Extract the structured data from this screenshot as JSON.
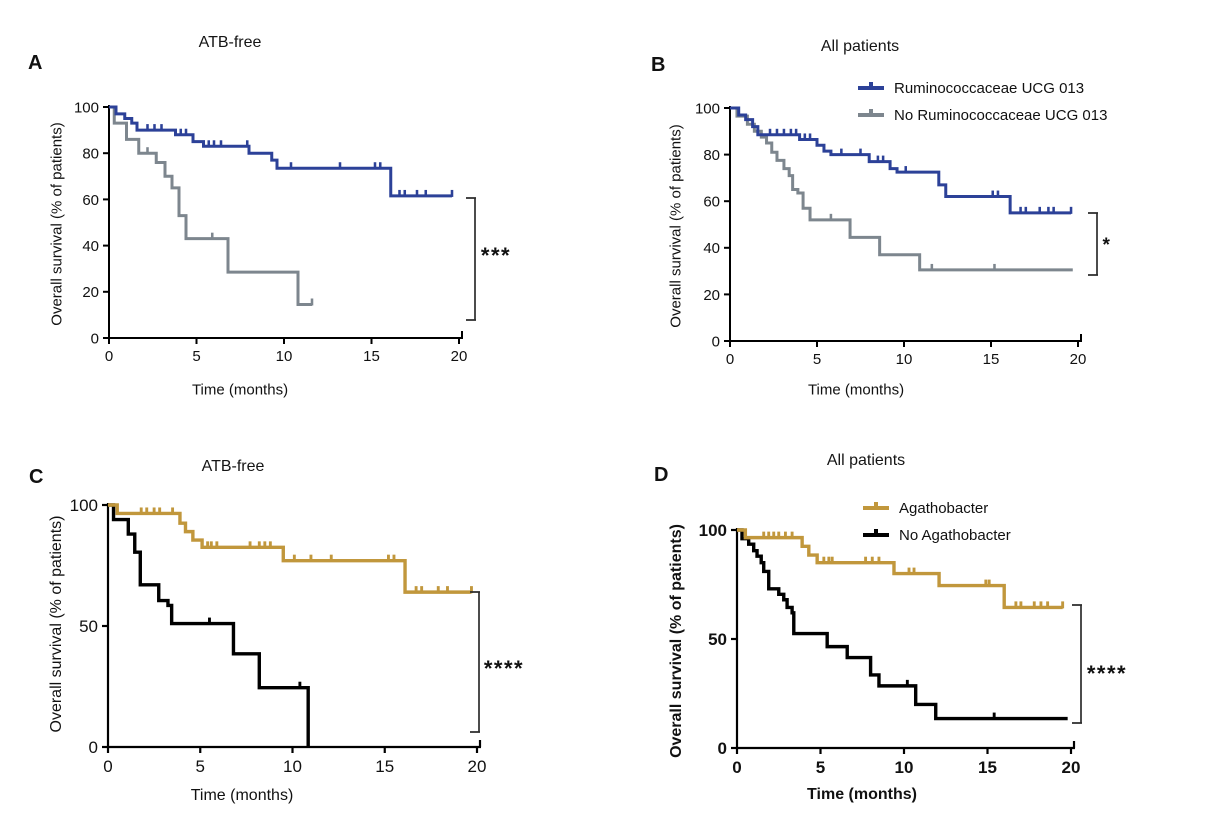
{
  "figure": {
    "background": "#ffffff",
    "description": "Kaplan-Meier overall survival curves, four panels"
  },
  "colors": {
    "blue": "#2c4198",
    "gray": "#7d868e",
    "gold": "#c1973c",
    "black": "#000000",
    "bracket": "#2d2d2d"
  },
  "chart_data": [
    {
      "type": "line",
      "subtype": "kaplan_meier_step",
      "panel_letter": "A",
      "title": "ATB-free",
      "xlabel": "Time (months)",
      "ylabel": "Overall survival (% of patients)",
      "xlim": [
        0,
        20
      ],
      "ylim": [
        0,
        100
      ],
      "x_ticks": [
        0,
        5,
        10,
        15,
        20
      ],
      "y_ticks": [
        0,
        20,
        40,
        60,
        80,
        100
      ],
      "grid": false,
      "legend_position": "none",
      "significance": {
        "label": "***"
      },
      "series": [
        {
          "name": "Ruminococcaceae UCG 013",
          "color": "#2c4198",
          "steps": [
            [
              0,
              100
            ],
            [
              0.4,
              97
            ],
            [
              0.9,
              95
            ],
            [
              1.3,
              93
            ],
            [
              1.6,
              90
            ],
            [
              3.8,
              88
            ],
            [
              4.8,
              85
            ],
            [
              5.4,
              83
            ],
            [
              8.0,
              80
            ],
            [
              9.3,
              77
            ],
            [
              9.6,
              73.5
            ],
            [
              16.1,
              61.5
            ]
          ],
          "end_time": 19.6,
          "end_tick": true,
          "censor_marks": [
            [
              2.2,
              90
            ],
            [
              2.6,
              90
            ],
            [
              3.0,
              90
            ],
            [
              4.1,
              88
            ],
            [
              4.4,
              88
            ],
            [
              5.7,
              83
            ],
            [
              6.0,
              83
            ],
            [
              6.4,
              83
            ],
            [
              7.9,
              83
            ],
            [
              10.4,
              73.5
            ],
            [
              13.2,
              73.5
            ],
            [
              15.2,
              73.5
            ],
            [
              15.5,
              73.5
            ],
            [
              16.6,
              61.5
            ],
            [
              16.9,
              61.5
            ],
            [
              17.6,
              61.5
            ],
            [
              18.1,
              61.5
            ]
          ]
        },
        {
          "name": "No Ruminococcaceae UCG 013",
          "color": "#7d868e",
          "steps": [
            [
              0,
              100
            ],
            [
              0.3,
              93
            ],
            [
              1.0,
              86
            ],
            [
              1.7,
              80
            ],
            [
              2.7,
              76
            ],
            [
              3.2,
              70
            ],
            [
              3.6,
              65
            ],
            [
              4.0,
              53
            ],
            [
              4.4,
              43
            ],
            [
              6.8,
              28.5
            ],
            [
              10.8,
              14.5
            ]
          ],
          "end_time": 11.6,
          "end_tick": true,
          "censor_marks": [
            [
              2.2,
              80
            ],
            [
              5.9,
              43
            ]
          ]
        }
      ]
    },
    {
      "type": "line",
      "subtype": "kaplan_meier_step",
      "panel_letter": "B",
      "title": "All patients",
      "xlabel": "Time (months)",
      "ylabel": "Overall survival (% of patients)",
      "xlim": [
        0,
        20
      ],
      "ylim": [
        0,
        100
      ],
      "x_ticks": [
        0,
        5,
        10,
        15,
        20
      ],
      "y_ticks": [
        0,
        20,
        40,
        60,
        80,
        100
      ],
      "grid": false,
      "legend_position": "top",
      "significance": {
        "label": "*"
      },
      "series": [
        {
          "name": "Ruminococcaceae UCG 013",
          "color": "#2c4198",
          "steps": [
            [
              0,
              100
            ],
            [
              0.5,
              97
            ],
            [
              0.9,
              95
            ],
            [
              1.3,
              92
            ],
            [
              1.6,
              88.5
            ],
            [
              4.0,
              86.5
            ],
            [
              5.0,
              84
            ],
            [
              5.4,
              81.5
            ],
            [
              5.8,
              80
            ],
            [
              8.0,
              77
            ],
            [
              9.2,
              74
            ],
            [
              9.6,
              72.5
            ],
            [
              12.0,
              67
            ],
            [
              12.4,
              62
            ],
            [
              16.1,
              55
            ]
          ],
          "end_time": 19.6,
          "end_tick": true,
          "censor_marks": [
            [
              2.3,
              88.5
            ],
            [
              2.7,
              88.5
            ],
            [
              3.1,
              88.5
            ],
            [
              3.5,
              88.5
            ],
            [
              3.8,
              88.5
            ],
            [
              4.3,
              86.5
            ],
            [
              4.6,
              86.5
            ],
            [
              6.4,
              80
            ],
            [
              7.5,
              80
            ],
            [
              8.5,
              77
            ],
            [
              8.8,
              77
            ],
            [
              10.1,
              72.5
            ],
            [
              15.1,
              62
            ],
            [
              15.4,
              62
            ],
            [
              16.7,
              55
            ],
            [
              17.0,
              55
            ],
            [
              17.8,
              55
            ],
            [
              18.3,
              55
            ],
            [
              18.6,
              55
            ]
          ]
        },
        {
          "name": "No Ruminococcaceae UCG 013",
          "color": "#7d868e",
          "steps": [
            [
              0,
              100
            ],
            [
              0.4,
              96.5
            ],
            [
              1.0,
              93
            ],
            [
              1.4,
              90
            ],
            [
              1.8,
              87.5
            ],
            [
              2.1,
              85
            ],
            [
              2.4,
              81
            ],
            [
              2.7,
              77.5
            ],
            [
              3.1,
              74
            ],
            [
              3.4,
              71
            ],
            [
              3.6,
              65
            ],
            [
              3.9,
              63.5
            ],
            [
              4.2,
              57
            ],
            [
              4.6,
              52
            ],
            [
              6.9,
              44.5
            ],
            [
              8.6,
              37
            ],
            [
              10.9,
              30.5
            ]
          ],
          "end_time": 19.7,
          "end_tick": false,
          "censor_marks": [
            [
              5.8,
              52
            ],
            [
              11.6,
              30.5
            ],
            [
              15.2,
              30.5
            ]
          ]
        }
      ]
    },
    {
      "type": "line",
      "subtype": "kaplan_meier_step",
      "panel_letter": "C",
      "title": "ATB-free",
      "xlabel": "Time (months)",
      "ylabel": "Overall survival (% of patients)",
      "xlim": [
        0,
        20
      ],
      "ylim": [
        0,
        100
      ],
      "x_ticks": [
        0,
        5,
        10,
        15,
        20
      ],
      "y_ticks": [
        0,
        50,
        100
      ],
      "grid": false,
      "legend_position": "none",
      "significance": {
        "label": "****"
      },
      "series": [
        {
          "name": "Agathobacter",
          "color": "#c1973c",
          "steps": [
            [
              0,
              100
            ],
            [
              0.5,
              96.5
            ],
            [
              3.9,
              92.5
            ],
            [
              4.2,
              89
            ],
            [
              4.6,
              85.5
            ],
            [
              5.1,
              82.5
            ],
            [
              9.5,
              77
            ],
            [
              16.1,
              64
            ]
          ],
          "end_time": 19.7,
          "end_tick": true,
          "censor_marks": [
            [
              1.8,
              96.5
            ],
            [
              2.1,
              96.5
            ],
            [
              2.5,
              96.5
            ],
            [
              2.8,
              96.5
            ],
            [
              3.5,
              96.5
            ],
            [
              5.4,
              82.5
            ],
            [
              5.6,
              82.5
            ],
            [
              5.9,
              82.5
            ],
            [
              7.7,
              82.5
            ],
            [
              8.2,
              82.5
            ],
            [
              8.5,
              82.5
            ],
            [
              8.8,
              82.5
            ],
            [
              10.1,
              77
            ],
            [
              11.0,
              77
            ],
            [
              12.1,
              77
            ],
            [
              15.2,
              77
            ],
            [
              15.5,
              77
            ],
            [
              16.7,
              64
            ],
            [
              17.0,
              64
            ],
            [
              17.9,
              64
            ],
            [
              18.4,
              64
            ]
          ]
        },
        {
          "name": "No Agathobacter",
          "color": "#000000",
          "steps": [
            [
              0,
              100
            ],
            [
              0.3,
              94
            ],
            [
              1.1,
              88
            ],
            [
              1.45,
              80.5
            ],
            [
              1.75,
              67
            ],
            [
              2.75,
              60.5
            ],
            [
              3.25,
              58.5
            ],
            [
              3.45,
              51
            ],
            [
              6.8,
              38.5
            ],
            [
              8.2,
              24.5
            ],
            [
              10.85,
              0
            ]
          ],
          "end_time": 10.85,
          "end_tick": false,
          "censor_marks": [
            [
              5.5,
              51
            ],
            [
              10.4,
              24.5
            ]
          ]
        }
      ]
    },
    {
      "type": "line",
      "subtype": "kaplan_meier_step",
      "panel_letter": "D",
      "title": "All patients",
      "xlabel": "Time (months)",
      "ylabel": "Overall survival (% of patients)",
      "xlim": [
        0,
        20
      ],
      "ylim": [
        0,
        100
      ],
      "x_ticks": [
        0,
        5,
        10,
        15,
        20
      ],
      "y_ticks": [
        0,
        50,
        100
      ],
      "grid": false,
      "legend_position": "top",
      "significance": {
        "label": "****"
      },
      "series": [
        {
          "name": "Agathobacter",
          "color": "#c1973c",
          "steps": [
            [
              0,
              100
            ],
            [
              0.5,
              96.5
            ],
            [
              3.9,
              92.5
            ],
            [
              4.3,
              88.5
            ],
            [
              4.8,
              85
            ],
            [
              9.4,
              80
            ],
            [
              12.1,
              74.5
            ],
            [
              16.0,
              64.5
            ]
          ],
          "end_time": 19.5,
          "end_tick": true,
          "censor_marks": [
            [
              1.6,
              96.5
            ],
            [
              1.9,
              96.5
            ],
            [
              2.2,
              96.5
            ],
            [
              2.5,
              96.5
            ],
            [
              2.9,
              96.5
            ],
            [
              3.3,
              96.5
            ],
            [
              5.2,
              85
            ],
            [
              5.5,
              85
            ],
            [
              5.7,
              85
            ],
            [
              7.7,
              85
            ],
            [
              8.1,
              85
            ],
            [
              8.5,
              85
            ],
            [
              10.3,
              80
            ],
            [
              10.6,
              80
            ],
            [
              14.9,
              74.5
            ],
            [
              15.1,
              74.5
            ],
            [
              16.7,
              64.5
            ],
            [
              17.0,
              64.5
            ],
            [
              17.8,
              64.5
            ],
            [
              18.2,
              64.5
            ],
            [
              18.6,
              64.5
            ]
          ]
        },
        {
          "name": "No Agathobacter",
          "color": "#000000",
          "steps": [
            [
              0,
              100
            ],
            [
              0.3,
              96
            ],
            [
              0.7,
              93.5
            ],
            [
              1.0,
              90.5
            ],
            [
              1.2,
              88
            ],
            [
              1.45,
              85
            ],
            [
              1.6,
              81
            ],
            [
              1.9,
              73
            ],
            [
              2.5,
              70.5
            ],
            [
              2.8,
              68
            ],
            [
              3.0,
              64.5
            ],
            [
              3.3,
              62
            ],
            [
              3.4,
              52.5
            ],
            [
              5.4,
              46.5
            ],
            [
              6.6,
              41.5
            ],
            [
              8.0,
              33.5
            ],
            [
              8.5,
              28.5
            ],
            [
              10.7,
              20
            ],
            [
              11.9,
              13.5
            ]
          ],
          "end_time": 19.8,
          "end_tick": false,
          "censor_marks": [
            [
              10.2,
              28.5
            ],
            [
              15.4,
              13.5
            ]
          ]
        }
      ]
    }
  ]
}
